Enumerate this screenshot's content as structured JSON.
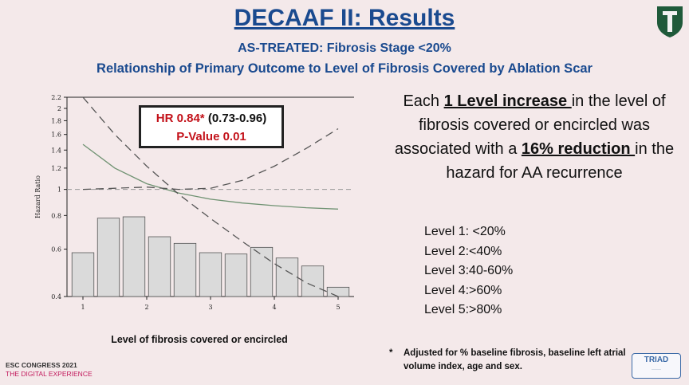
{
  "slide": {
    "title": "DECAAF II: Results",
    "subtitle1": "AS-TREATED: Fibrosis Stage <20%",
    "subtitle2": "Relationship of Primary Outcome to Level of Fibrosis Covered by Ablation Scar"
  },
  "hr_box": {
    "hr": "HR 0.84*",
    "ci": " (0.73-0.96)",
    "pvalue": "P-Value 0.01"
  },
  "side": {
    "t1": "Each ",
    "t1u": "1 Level increase ",
    "t2": "in the level of fibrosis covered or encircled was associated with a ",
    "t2u": "16% reduction ",
    "t3": "in the hazard for AA recurrence"
  },
  "levels": [
    "Level 1: <20%",
    "Level 2:<40%",
    "Level 3:40-60%",
    "Level 4:>60%",
    "Level 5:>80%"
  ],
  "footnote": {
    "star": "*",
    "text": "Adjusted for % baseline fibrosis, baseline left atrial volume index, age and sex."
  },
  "branding": {
    "congress": "ESC CONGRESS 2021",
    "congress_sub": "THE DIGITAL EXPERIENCE",
    "triad": "TRIAD",
    "accent": "#1a4a8f"
  },
  "chart_data": {
    "type": "line",
    "ylabel": "Hazard Ratio",
    "xlabel": "Level of fibrosis covered or encircled",
    "xlim": [
      0.75,
      5.25
    ],
    "ylim": [
      0.4,
      2.2
    ],
    "y_log": true,
    "x_ticks": [
      1,
      2,
      3,
      4,
      5
    ],
    "y_ticks": [
      0.4,
      0.6,
      0.8,
      1,
      1.2,
      1.4,
      1.6,
      1.8,
      2,
      2.2
    ],
    "reference_line": 1,
    "series": [
      {
        "role": "estimate",
        "color": "#6f9272",
        "style": "solid",
        "x": [
          1,
          1.5,
          2,
          2.5,
          3,
          3.5,
          4,
          4.5,
          5
        ],
        "y": [
          1.47,
          1.2,
          1.05,
          0.97,
          0.92,
          0.89,
          0.87,
          0.855,
          0.845
        ]
      },
      {
        "role": "lower-ci",
        "color": "#555555",
        "style": "dashed",
        "x": [
          1,
          1.5,
          2,
          2.5,
          3,
          3.5,
          4,
          4.5,
          5
        ],
        "y": [
          2.2,
          1.6,
          1.22,
          0.96,
          0.78,
          0.64,
          0.53,
          0.45,
          0.4
        ]
      },
      {
        "role": "upper-ci",
        "color": "#555555",
        "style": "dashed",
        "x": [
          1,
          1.5,
          2,
          2.5,
          3,
          3.5,
          4,
          4.5,
          5
        ],
        "y": [
          1.0,
          1.01,
          1.02,
          1.0,
          1.01,
          1.08,
          1.22,
          1.42,
          1.68
        ]
      }
    ],
    "histogram": {
      "x": [
        1,
        1.4,
        1.8,
        2.2,
        2.6,
        3,
        3.4,
        3.8,
        4.2,
        4.6,
        5
      ],
      "heights": [
        0.33,
        0.59,
        0.6,
        0.45,
        0.4,
        0.33,
        0.32,
        0.37,
        0.29,
        0.23,
        0.07
      ]
    }
  }
}
